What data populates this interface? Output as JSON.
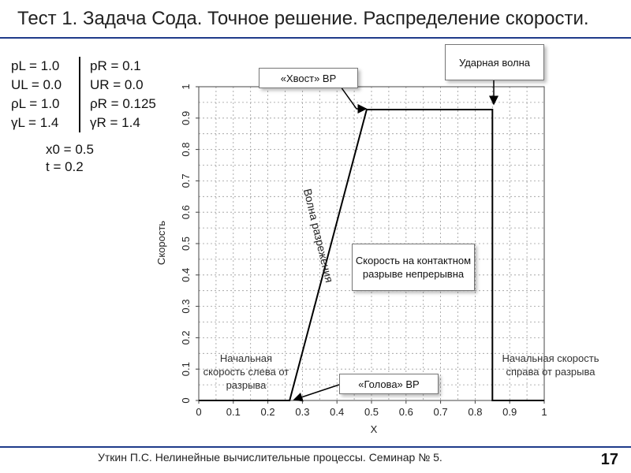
{
  "slide": {
    "title": "Тест 1. Задача Сода. Точное решение. Распределение скорости.",
    "footer": "Уткин П.С. Нелинейные вычислительные процессы. Семинар № 5.",
    "page_number": "17"
  },
  "params": {
    "left": [
      "pL = 1.0",
      "UL = 0.0",
      "ρL = 1.0",
      "γL = 1.4"
    ],
    "right": [
      "pR = 0.1",
      "UR = 0.0",
      "ρR = 0.125",
      "γR = 1.4"
    ],
    "x0": "x0 = 0.5",
    "t": "t = 0.2"
  },
  "annotations": {
    "shock": "Ударная волна",
    "tail": "«Хвост» ВР",
    "head": "«Голова» ВР",
    "contact": "Скорость на контактном разрыве непрерывна",
    "rarefaction": "Волна разрежения",
    "left_initial": "Начальная скорость слева от разрыва",
    "right_initial": "Начальная скорость справа от разрыва"
  },
  "chart_data": {
    "type": "line",
    "xlabel": "X",
    "ylabel": "Скорость",
    "xlim": [
      0,
      1
    ],
    "ylim": [
      0,
      1
    ],
    "x_ticks": [
      "0",
      "0.1",
      "0.2",
      "0.3",
      "0.4",
      "0.5",
      "0.6",
      "0.7",
      "0.8",
      "0.9",
      "1"
    ],
    "y_ticks": [
      "0",
      "0.1",
      "0.2",
      "0.3",
      "0.4",
      "0.5",
      "0.6",
      "0.7",
      "0.8",
      "0.9",
      "1"
    ],
    "grid": true,
    "series": [
      {
        "x": [
          0,
          0.263,
          0.486,
          0.85,
          0.85,
          1.0
        ],
        "y": [
          0,
          0,
          0.927,
          0.927,
          0,
          0
        ]
      }
    ],
    "color": "#000000"
  }
}
